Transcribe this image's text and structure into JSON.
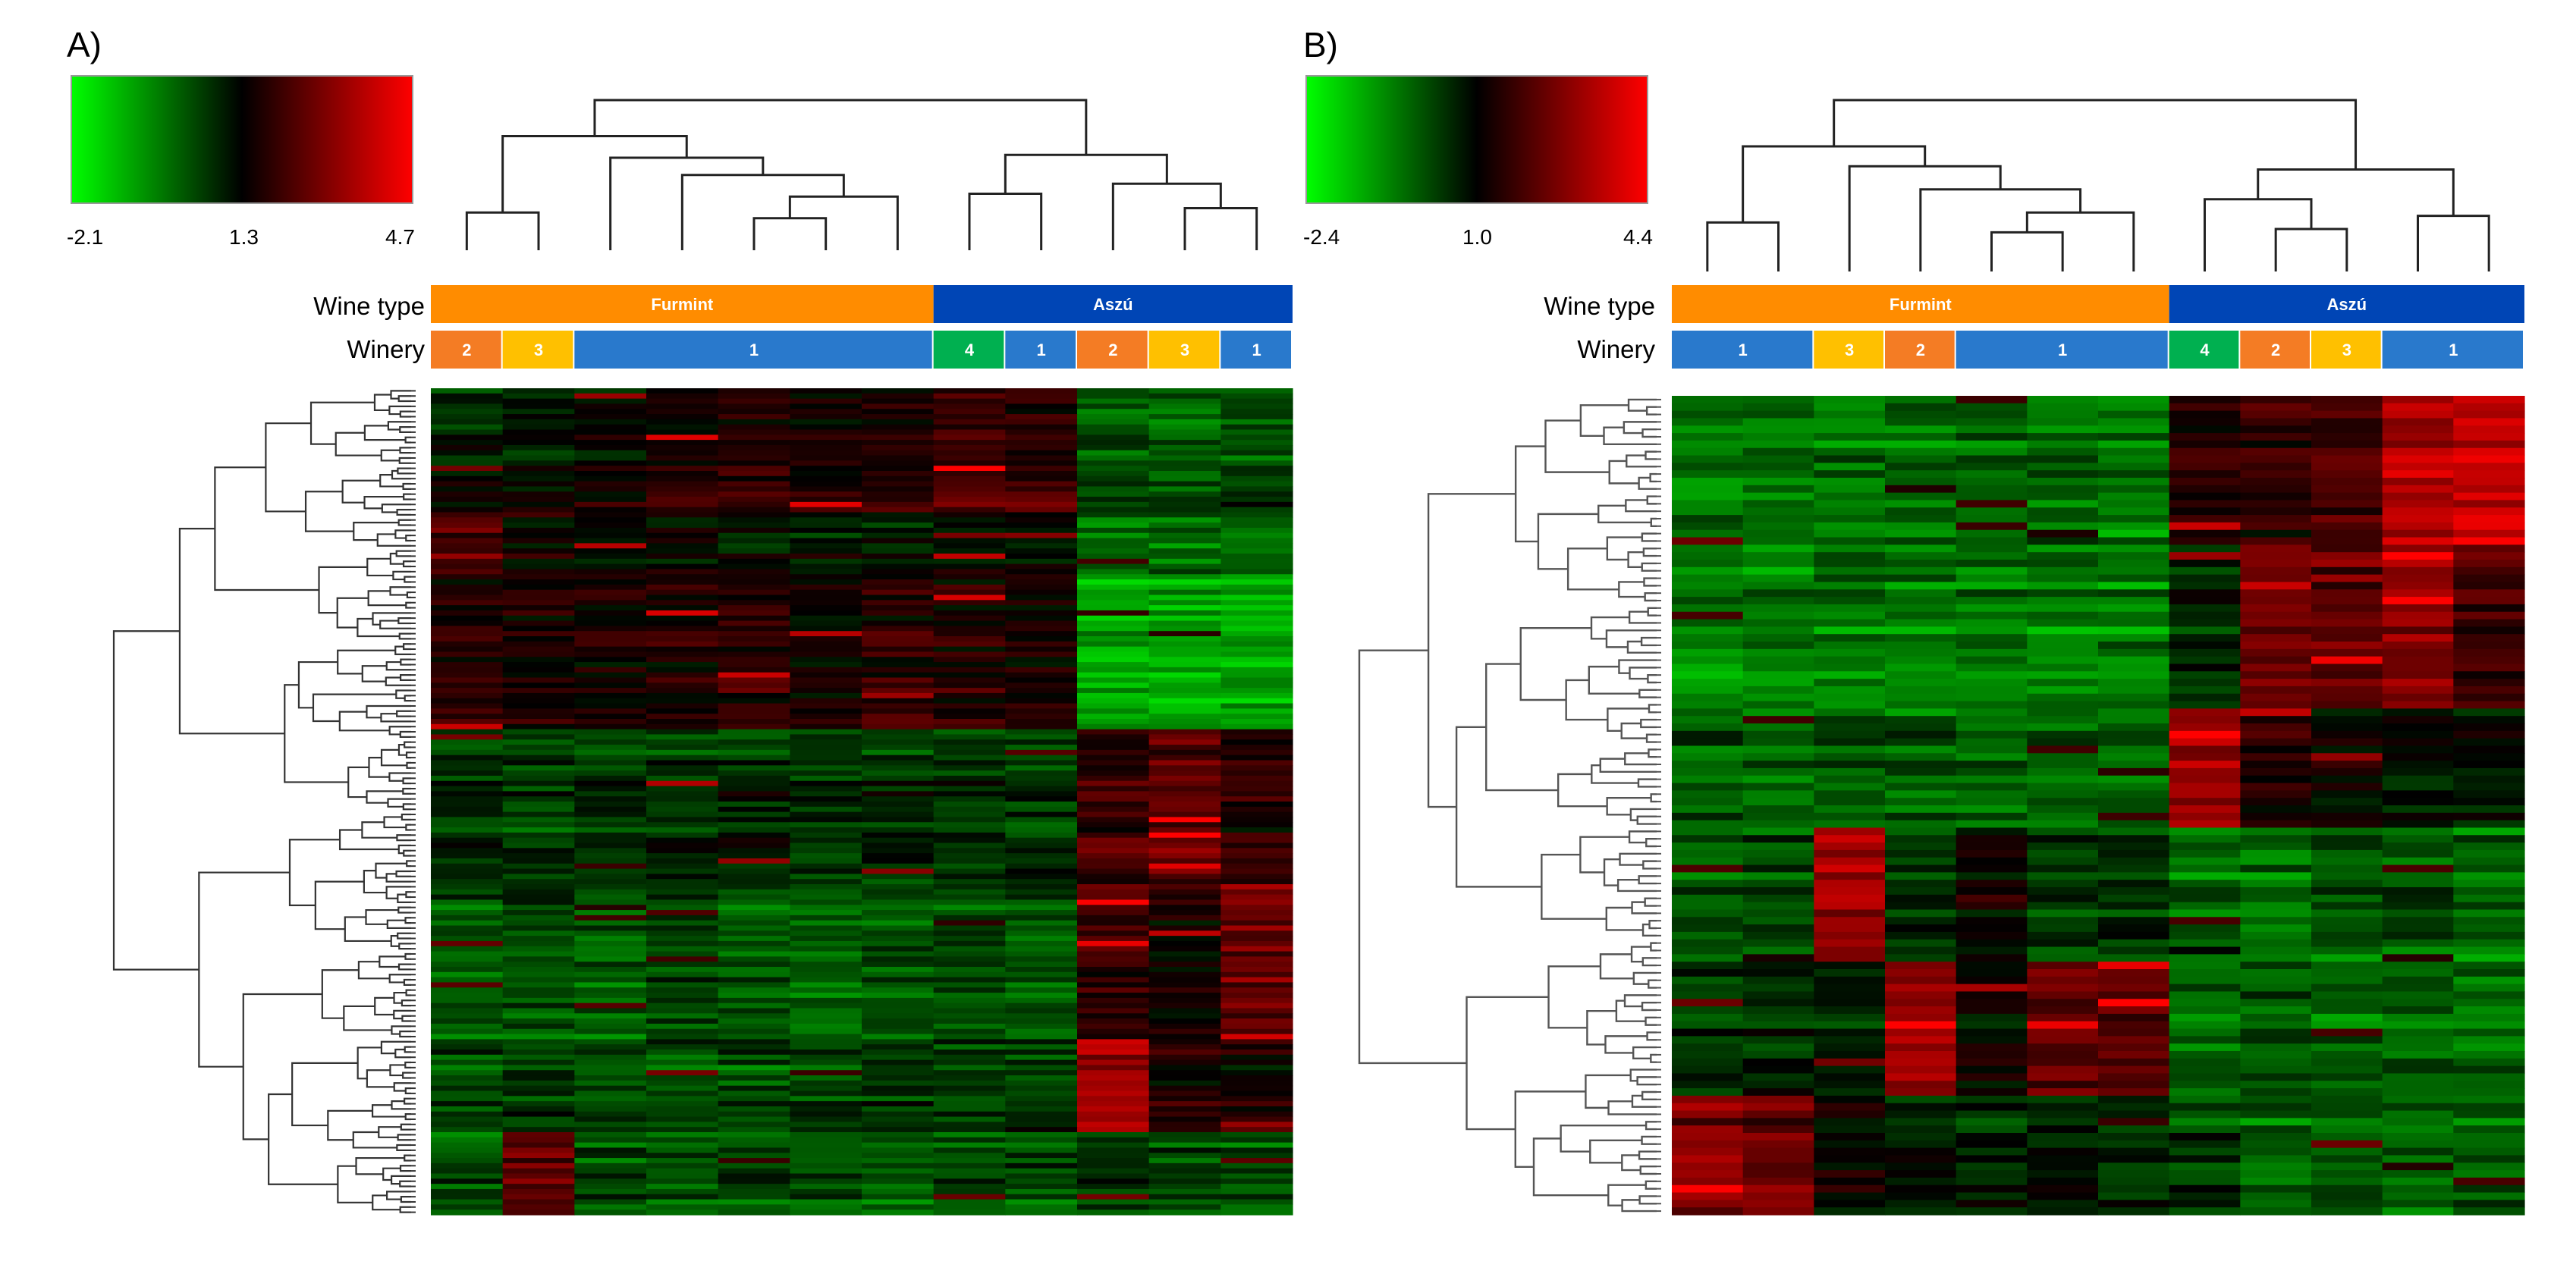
{
  "figure": {
    "description_labels": {
      "wine_type_row": "Wine type",
      "winery_row": "Winery"
    }
  },
  "chart_data": [
    {
      "type": "heatmap",
      "panel_label": "A)",
      "title": "",
      "color_scale": {
        "min": -2.1,
        "mid": 1.3,
        "max": 4.7,
        "min_label": "-2.1",
        "mid_label": "1.3",
        "max_label": "4.7",
        "low_color": "#00ff00",
        "mid_color": "#000000",
        "high_color": "#ff0000"
      },
      "row_labels": {
        "wine_type": "Wine type",
        "winery": "Winery"
      },
      "n_samples": 12,
      "n_features": 160,
      "wine_type_groups": [
        {
          "label": "Furmint",
          "count": 7,
          "color": "#ff8c00"
        },
        {
          "label": "Aszú",
          "count": 5,
          "color": "#0045b5"
        }
      ],
      "winery_groups": [
        {
          "label": "2",
          "count": 1,
          "color": "#f47c24"
        },
        {
          "label": "3",
          "count": 1,
          "color": "#ffc000"
        },
        {
          "label": "1",
          "count": 5,
          "color": "#2979cc"
        },
        {
          "label": "4",
          "count": 1,
          "color": "#00b050"
        },
        {
          "label": "1",
          "count": 1,
          "color": "#2979cc"
        },
        {
          "label": "2",
          "count": 1,
          "color": "#f47c24"
        },
        {
          "label": "3",
          "count": 1,
          "color": "#ffc000"
        },
        {
          "label": "1",
          "count": 1,
          "color": "#2979cc"
        }
      ],
      "row_pattern_segments": [
        {
          "rows": 24,
          "values": [
            1.0,
            1.1,
            1.4,
            1.7,
            1.8,
            1.6,
            2.0,
            2.1,
            2.0,
            0.3,
            0.2,
            0.4
          ]
        },
        {
          "rows": 12,
          "values": [
            2.3,
            1.4,
            1.2,
            1.2,
            1.1,
            1.0,
            1.0,
            1.0,
            1.1,
            -0.3,
            -0.2,
            -0.1
          ]
        },
        {
          "rows": 30,
          "values": [
            1.8,
            1.6,
            1.6,
            1.7,
            1.9,
            1.6,
            1.8,
            1.7,
            1.6,
            -0.9,
            -0.9,
            -0.8
          ]
        },
        {
          "rows": 30,
          "values": [
            0.6,
            0.5,
            0.6,
            0.7,
            0.8,
            0.6,
            0.7,
            0.6,
            0.6,
            2.0,
            2.6,
            1.8
          ]
        },
        {
          "rows": 30,
          "values": [
            0.2,
            0.3,
            0.1,
            0.3,
            0.2,
            0.1,
            0.2,
            0.3,
            0.2,
            2.1,
            1.5,
            2.7
          ]
        },
        {
          "rows": 18,
          "values": [
            0.4,
            0.6,
            0.5,
            0.4,
            0.3,
            0.5,
            0.6,
            0.4,
            0.5,
            3.4,
            1.8,
            1.6
          ]
        },
        {
          "rows": 16,
          "values": [
            0.2,
            2.6,
            0.3,
            0.2,
            0.3,
            0.2,
            0.1,
            0.2,
            0.3,
            0.6,
            0.4,
            0.3
          ]
        }
      ]
    },
    {
      "type": "heatmap",
      "panel_label": "B)",
      "title": "",
      "color_scale": {
        "min": -2.4,
        "mid": 1.0,
        "max": 4.4,
        "min_label": "-2.4",
        "mid_label": "1.0",
        "max_label": "4.4",
        "low_color": "#00ff00",
        "mid_color": "#000000",
        "high_color": "#ff0000"
      },
      "row_labels": {
        "wine_type": "Wine type",
        "winery": "Winery"
      },
      "n_samples": 12,
      "n_features": 110,
      "wine_type_groups": [
        {
          "label": "Furmint",
          "count": 7,
          "color": "#ff8c00"
        },
        {
          "label": "Aszú",
          "count": 5,
          "color": "#0045b5"
        }
      ],
      "winery_groups": [
        {
          "label": "1",
          "count": 2,
          "color": "#2979cc"
        },
        {
          "label": "3",
          "count": 1,
          "color": "#ffc000"
        },
        {
          "label": "2",
          "count": 1,
          "color": "#f47c24"
        },
        {
          "label": "1",
          "count": 3,
          "color": "#2979cc"
        },
        {
          "label": "4",
          "count": 1,
          "color": "#00b050"
        },
        {
          "label": "2",
          "count": 1,
          "color": "#f47c24"
        },
        {
          "label": "3",
          "count": 1,
          "color": "#ffc000"
        },
        {
          "label": "1",
          "count": 2,
          "color": "#2979cc"
        }
      ],
      "row_pattern_segments": [
        {
          "rows": 20,
          "values": [
            -0.6,
            -0.5,
            -0.6,
            -0.5,
            -0.4,
            -0.5,
            -0.6,
            1.4,
            1.6,
            1.8,
            3.2,
            3.6
          ]
        },
        {
          "rows": 22,
          "values": [
            -0.8,
            -0.7,
            -0.6,
            -0.7,
            -0.6,
            -0.7,
            -0.6,
            0.6,
            2.4,
            2.2,
            2.8,
            1.8
          ]
        },
        {
          "rows": 16,
          "values": [
            -0.2,
            -0.3,
            -0.2,
            -0.2,
            -0.3,
            -0.2,
            -0.3,
            3.2,
            1.5,
            1.2,
            0.8,
            0.9
          ]
        },
        {
          "rows": 18,
          "values": [
            -0.2,
            -0.1,
            3.0,
            0.4,
            1.2,
            0.2,
            0.3,
            -0.4,
            -0.5,
            -0.3,
            -0.2,
            -0.4
          ]
        },
        {
          "rows": 18,
          "values": [
            0.2,
            0.3,
            0.6,
            2.8,
            1.0,
            2.2,
            2.0,
            -0.5,
            -0.3,
            -0.4,
            -0.3,
            -0.5
          ]
        },
        {
          "rows": 16,
          "values": [
            2.6,
            2.4,
            1.0,
            0.6,
            0.4,
            0.5,
            0.4,
            0.2,
            -0.3,
            -0.2,
            -0.4,
            -0.3
          ]
        }
      ]
    }
  ]
}
